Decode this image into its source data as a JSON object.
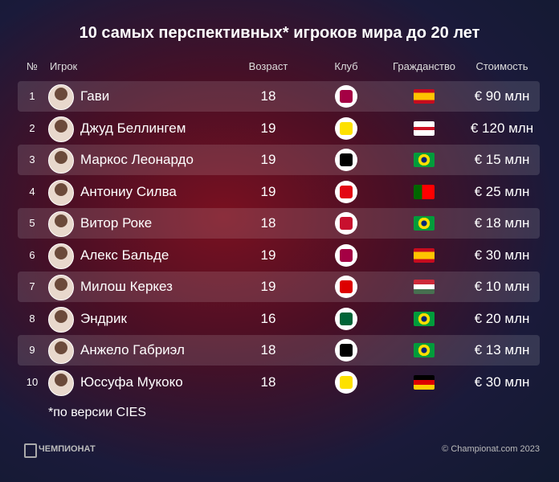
{
  "header": {
    "title": "10 самых перспективных* игроков мира до 20 лет"
  },
  "table": {
    "columns": [
      "№",
      "Игрок",
      "Возраст",
      "Клуб",
      "Гражданство",
      "Стоимость"
    ],
    "rows": [
      [
        "1",
        "Гави",
        "18",
        "€ 90 млн"
      ],
      [
        "2",
        "Джуд Беллингем",
        "19",
        "€ 120 млн"
      ],
      [
        "3",
        "Маркос Леонардо",
        "19",
        "€ 15 млн"
      ],
      [
        "4",
        "Антониу Силва",
        "19",
        "€ 25 млн"
      ],
      [
        "5",
        "Витор Роке",
        "18",
        "€ 18 млн"
      ],
      [
        "6",
        "Алекс Бальде",
        "19",
        "€ 30 млн"
      ],
      [
        "7",
        "Милош Керкез",
        "19",
        "€ 10 млн"
      ],
      [
        "8",
        "Эндрик",
        "16",
        "€ 20 млн"
      ],
      [
        "9",
        "Анжело Габриэл",
        "18",
        "€ 13 млн"
      ],
      [
        "10",
        "Юссуфа Мукоко",
        "18",
        "€ 30 млн"
      ]
    ]
  },
  "footnote": "*по версии CIES",
  "footer": {
    "brand": "ЧЕМПИОНАТ",
    "copyright": "© Championat.com 2023"
  }
}
